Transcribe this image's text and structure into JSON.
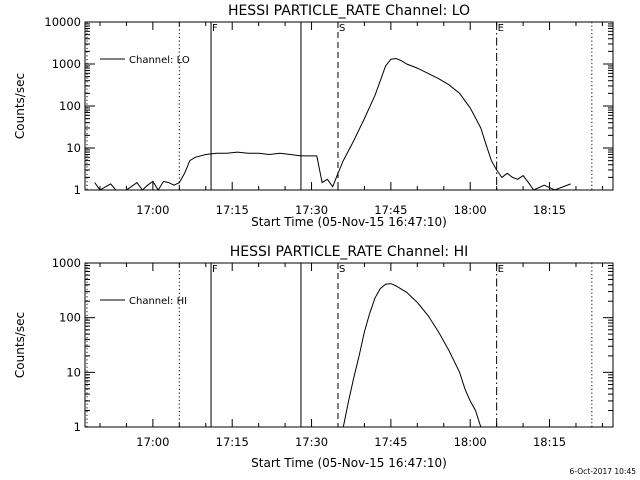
{
  "footer": {
    "timestamp": "6-Oct-2017 10:45"
  },
  "chart_data": [
    {
      "type": "line",
      "title": "HESSI PARTICLE_RATE Channel: LO",
      "xlabel": "Start Time (05-Nov-15 16:47:10)",
      "ylabel": "Counts/sec",
      "y_scale": "log",
      "ylim": [
        1,
        10000
      ],
      "xlim": [
        "16:47:10",
        "18:27"
      ],
      "y_ticks": [
        "1",
        "10",
        "100",
        "1000",
        "10000"
      ],
      "x_ticks": [
        "17:00",
        "17:15",
        "17:30",
        "17:45",
        "18:00",
        "18:15"
      ],
      "grid": false,
      "legend": {
        "position": "top-left",
        "entries": [
          "Channel: LO"
        ]
      },
      "markers": [
        {
          "time": "16:47:10",
          "style": "dotted"
        },
        {
          "time": "17:05",
          "style": "dotted"
        },
        {
          "time": "17:11",
          "label": "F",
          "style": "solid"
        },
        {
          "time": "17:28",
          "style": "solid"
        },
        {
          "time": "17:35",
          "label": "S",
          "style": "dashed"
        },
        {
          "time": "18:05",
          "label": "E",
          "style": "dashdot"
        },
        {
          "time": "18:23",
          "style": "dotted"
        }
      ],
      "series": [
        {
          "name": "Channel: LO",
          "x": [
            "16:49",
            "16:50",
            "16:52",
            "16:53",
            "16:55",
            "16:57",
            "16:58",
            "16:59",
            "17:00",
            "17:01",
            "17:02",
            "17:03",
            "17:04",
            "17:05",
            "17:06",
            "17:07",
            "17:08",
            "17:10",
            "17:12",
            "17:14",
            "17:16",
            "17:18",
            "17:20",
            "17:22",
            "17:24",
            "17:26",
            "17:28",
            "17:30",
            "17:31",
            "17:32",
            "17:33",
            "17:34",
            "17:35",
            "17:36",
            "17:38",
            "17:40",
            "17:42",
            "17:43",
            "17:44",
            "17:45",
            "17:46",
            "17:47",
            "17:48",
            "17:50",
            "17:52",
            "17:54",
            "17:56",
            "17:58",
            "18:00",
            "18:02",
            "18:03",
            "18:04",
            "18:05",
            "18:06",
            "18:07",
            "18:08",
            "18:09",
            "18:10",
            "18:11",
            "18:12",
            "18:14",
            "18:16",
            "18:19"
          ],
          "y": [
            1.5,
            1,
            1.4,
            1,
            1,
            1.5,
            1,
            1.3,
            1.6,
            1,
            1.6,
            1.5,
            1.3,
            1.5,
            2.5,
            5,
            6,
            7,
            7.5,
            7.5,
            8,
            7.5,
            7.5,
            7,
            7.5,
            7,
            6.5,
            6.5,
            6.5,
            1.5,
            1.8,
            1.2,
            2.5,
            5,
            15,
            50,
            180,
            400,
            900,
            1300,
            1350,
            1200,
            1000,
            800,
            600,
            450,
            320,
            200,
            90,
            30,
            12,
            5,
            3,
            2,
            2.5,
            2,
            1.8,
            2.2,
            1.5,
            1,
            1.3,
            1,
            1.4
          ]
        }
      ]
    },
    {
      "type": "line",
      "title": "HESSI PARTICLE_RATE Channel: HI",
      "xlabel": "Start Time (05-Nov-15 16:47:10)",
      "ylabel": "Counts/sec",
      "y_scale": "log",
      "ylim": [
        1,
        1000
      ],
      "xlim": [
        "16:47:10",
        "18:27"
      ],
      "y_ticks": [
        "1",
        "10",
        "100",
        "1000"
      ],
      "x_ticks": [
        "17:00",
        "17:15",
        "17:30",
        "17:45",
        "18:00",
        "18:15"
      ],
      "grid": false,
      "legend": {
        "position": "top-left",
        "entries": [
          "Channel: HI"
        ]
      },
      "markers": [
        {
          "time": "16:47:10",
          "style": "dotted"
        },
        {
          "time": "17:05",
          "style": "dotted"
        },
        {
          "time": "17:11",
          "label": "F",
          "style": "solid"
        },
        {
          "time": "17:28",
          "style": "solid"
        },
        {
          "time": "17:35",
          "label": "S",
          "style": "dashed"
        },
        {
          "time": "18:05",
          "label": "E",
          "style": "dashdot"
        },
        {
          "time": "18:23",
          "style": "dotted"
        }
      ],
      "series": [
        {
          "name": "Channel: HI",
          "x": [
            "17:36",
            "17:37",
            "17:38",
            "17:39",
            "17:40",
            "17:41",
            "17:42",
            "17:43",
            "17:44",
            "17:45",
            "17:46",
            "17:48",
            "17:50",
            "17:52",
            "17:54",
            "17:56",
            "17:58",
            "17:59",
            "18:00",
            "18:01",
            "18:02"
          ],
          "y": [
            1,
            3,
            8,
            20,
            55,
            120,
            230,
            340,
            410,
            420,
            380,
            290,
            190,
            110,
            55,
            25,
            10,
            5,
            3,
            2,
            1
          ]
        }
      ]
    }
  ]
}
